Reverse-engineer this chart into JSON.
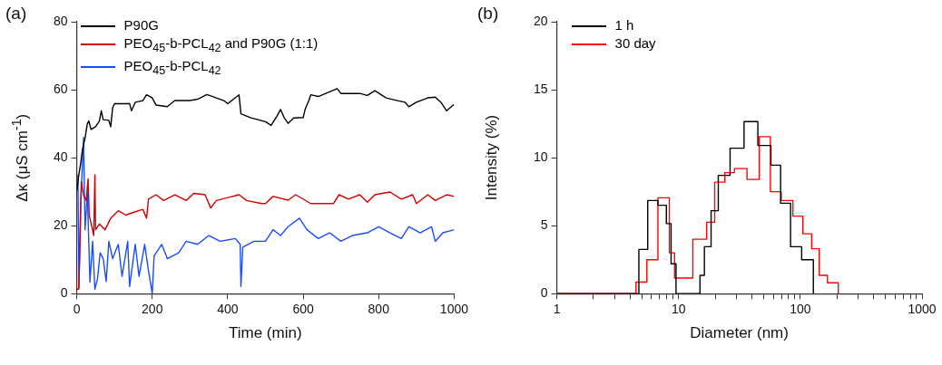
{
  "chart_data": [
    {
      "type": "line",
      "title": "(a)",
      "xlabel": "Time (min)",
      "ylabel": "Δκ (μS cm$^{-1}$)",
      "xlim": [
        0,
        1000
      ],
      "xticks": [
        0,
        200,
        400,
        600,
        800,
        1000
      ],
      "ylim": [
        0,
        80
      ],
      "yticks": [
        0,
        20,
        40,
        60,
        80
      ],
      "legend": "top left",
      "series": [
        {
          "name": "P90G",
          "color": "#000000",
          "x": [
            0,
            5,
            10,
            15,
            22,
            28,
            32,
            38,
            50,
            60,
            65,
            70,
            85,
            90,
            95,
            100,
            140,
            145,
            155,
            175,
            185,
            200,
            210,
            240,
            260,
            300,
            320,
            345,
            370,
            390,
            400,
            430,
            435,
            460,
            480,
            500,
            515,
            530,
            540,
            550,
            560,
            575,
            600,
            605,
            615,
            620,
            640,
            660,
            690,
            700,
            750,
            770,
            790,
            820,
            850,
            870,
            880,
            900,
            930,
            950,
            965,
            980,
            1000
          ],
          "values": [
            30,
            34.6,
            38,
            42.3,
            45.7,
            50,
            50.8,
            48.3,
            49.1,
            50.8,
            53.8,
            51.2,
            51,
            49.1,
            54.6,
            55.9,
            55.9,
            53.8,
            56.3,
            56.8,
            58.5,
            57.6,
            55.5,
            55,
            56.8,
            56.8,
            57.2,
            58.6,
            57.6,
            56.8,
            55.9,
            58.5,
            52.9,
            51.8,
            51.2,
            50.6,
            49.5,
            52.1,
            54.2,
            51.7,
            50.1,
            51.7,
            51.8,
            54.2,
            56.8,
            58.5,
            58,
            58.9,
            60.3,
            58.9,
            58.9,
            58.3,
            59.7,
            57.6,
            56.8,
            56.3,
            55,
            56.3,
            57.6,
            57.8,
            56.3,
            53.8,
            55.7
          ]
        },
        {
          "name": "PEO$_{45}$-b-PCL$_{42}$ and P90G (1:1)",
          "color": "#d40000",
          "x": [
            0,
            5,
            8,
            12,
            18,
            25,
            30,
            33,
            40,
            45,
            48,
            50,
            60,
            75,
            90,
            110,
            130,
            150,
            175,
            185,
            190,
            210,
            230,
            260,
            290,
            310,
            340,
            355,
            370,
            430,
            450,
            490,
            500,
            520,
            560,
            580,
            620,
            680,
            695,
            720,
            750,
            770,
            790,
            830,
            860,
            890,
            900,
            930,
            950,
            980,
            1000
          ],
          "values": [
            1.3,
            1.3,
            12,
            33,
            29,
            27.4,
            33.8,
            23,
            19.7,
            17.1,
            35,
            18.8,
            20.5,
            18.8,
            22.2,
            24.4,
            23.1,
            23.9,
            24.8,
            22.2,
            27.8,
            29.1,
            27.4,
            29.1,
            27.4,
            29.5,
            29.1,
            25.2,
            27.4,
            29.1,
            27.4,
            26.5,
            26.5,
            28.6,
            27.5,
            29.1,
            26.5,
            26.5,
            29.1,
            27.8,
            29.1,
            26.9,
            29.1,
            29.9,
            27.8,
            29.1,
            26.5,
            29.1,
            27.4,
            29.1,
            28.6
          ]
        },
        {
          "name": "PEO$_{45}$-b-PCL$_{42}$",
          "color": "#1a4cff",
          "x": [
            3,
            6,
            10,
            18,
            22,
            28,
            35,
            42,
            48,
            55,
            62,
            70,
            78,
            85,
            95,
            110,
            120,
            135,
            140,
            155,
            165,
            180,
            190,
            200,
            205,
            225,
            240,
            270,
            290,
            320,
            350,
            380,
            420,
            433,
            435,
            440,
            470,
            500,
            520,
            540,
            560,
            590,
            610,
            640,
            670,
            700,
            730,
            770,
            800,
            830,
            860,
            880,
            910,
            940,
            950,
            970,
            1000
          ],
          "values": [
            35,
            1.7,
            24.8,
            46,
            18.8,
            29.9,
            3.4,
            15.4,
            1.3,
            4.3,
            12,
            10.3,
            3.6,
            15.4,
            10.3,
            14.5,
            5.1,
            15.4,
            2.1,
            14.5,
            5.1,
            14.5,
            6.8,
            0,
            11.1,
            14.5,
            10.3,
            12,
            15.4,
            14.5,
            17.1,
            15.4,
            16.2,
            14.5,
            2.1,
            13.7,
            15.4,
            15.4,
            18.8,
            17.1,
            19.7,
            22.2,
            18.8,
            16.2,
            17.9,
            15.4,
            17.1,
            17.9,
            19.7,
            17.9,
            16.2,
            19.7,
            17.9,
            19.7,
            15.4,
            17.9,
            18.8
          ]
        }
      ]
    },
    {
      "type": "step",
      "title": "(b)",
      "xlabel": "Diameter (nm)",
      "ylabel": "Intensity (%)",
      "log": "x",
      "xlim": [
        1,
        1000
      ],
      "ylim": [
        0,
        20
      ],
      "yticks": [
        0,
        5,
        10,
        15,
        20
      ],
      "legend": "top left",
      "xticks": [
        1,
        {
          "value": 2,
          "label": null
        },
        {
          "value": 3,
          "label": null
        },
        {
          "value": 4,
          "label": null
        },
        {
          "value": 5,
          "label": null
        },
        {
          "value": 6,
          "label": null
        },
        {
          "value": 7,
          "label": null
        },
        {
          "value": 8,
          "label": null
        },
        {
          "value": 9,
          "label": null
        },
        10,
        {
          "value": 20,
          "label": null
        },
        {
          "value": 30,
          "label": null
        },
        {
          "value": 40,
          "label": null
        },
        {
          "value": 50,
          "label": null
        },
        {
          "value": 60,
          "label": null
        },
        {
          "value": 70,
          "label": null
        },
        {
          "value": 80,
          "label": null
        },
        {
          "value": 90,
          "label": null
        },
        100,
        {
          "value": 200,
          "label": null
        },
        {
          "value": 300,
          "label": null
        },
        {
          "value": 400,
          "label": null
        },
        {
          "value": 500,
          "label": null
        },
        {
          "value": 600,
          "label": null
        },
        {
          "value": 700,
          "label": null
        },
        {
          "value": 800,
          "label": null
        },
        {
          "value": 900,
          "label": null
        },
        1000
      ],
      "series": [
        {
          "name": "1 h",
          "color": "#000000",
          "x": [
            1,
            4.72,
            5.58,
            6.77,
            7.94,
            8.68,
            9.53,
            15,
            16.3,
            18.5,
            21.2,
            26.5,
            34.5,
            44.8,
            57.4,
            68.9,
            83.2,
            102.6,
            128
          ],
          "values": [
            0,
            3.25,
            6.85,
            6.5,
            5.15,
            2.2,
            0,
            1.35,
            3.45,
            6.1,
            8.7,
            10.7,
            12.65,
            10.9,
            9.45,
            6.65,
            3.45,
            2.5,
            0
          ]
        },
        {
          "name": "30 day",
          "color": "#ff0000",
          "x": [
            1,
            4.47,
            5.49,
            6.77,
            8.4,
            9.27,
            13.1,
            17,
            19.8,
            24,
            28.8,
            36.5,
            46,
            56.8,
            69.7,
            86.9,
            105,
            124,
            143,
            167,
            205
          ],
          "values": [
            0,
            0.85,
            2.5,
            7.05,
            3,
            1.15,
            4,
            5.25,
            8.2,
            8.9,
            9.2,
            8.4,
            11.55,
            7.5,
            6.85,
            5.7,
            4.4,
            3.3,
            1.35,
            0.8,
            0
          ]
        }
      ]
    }
  ]
}
